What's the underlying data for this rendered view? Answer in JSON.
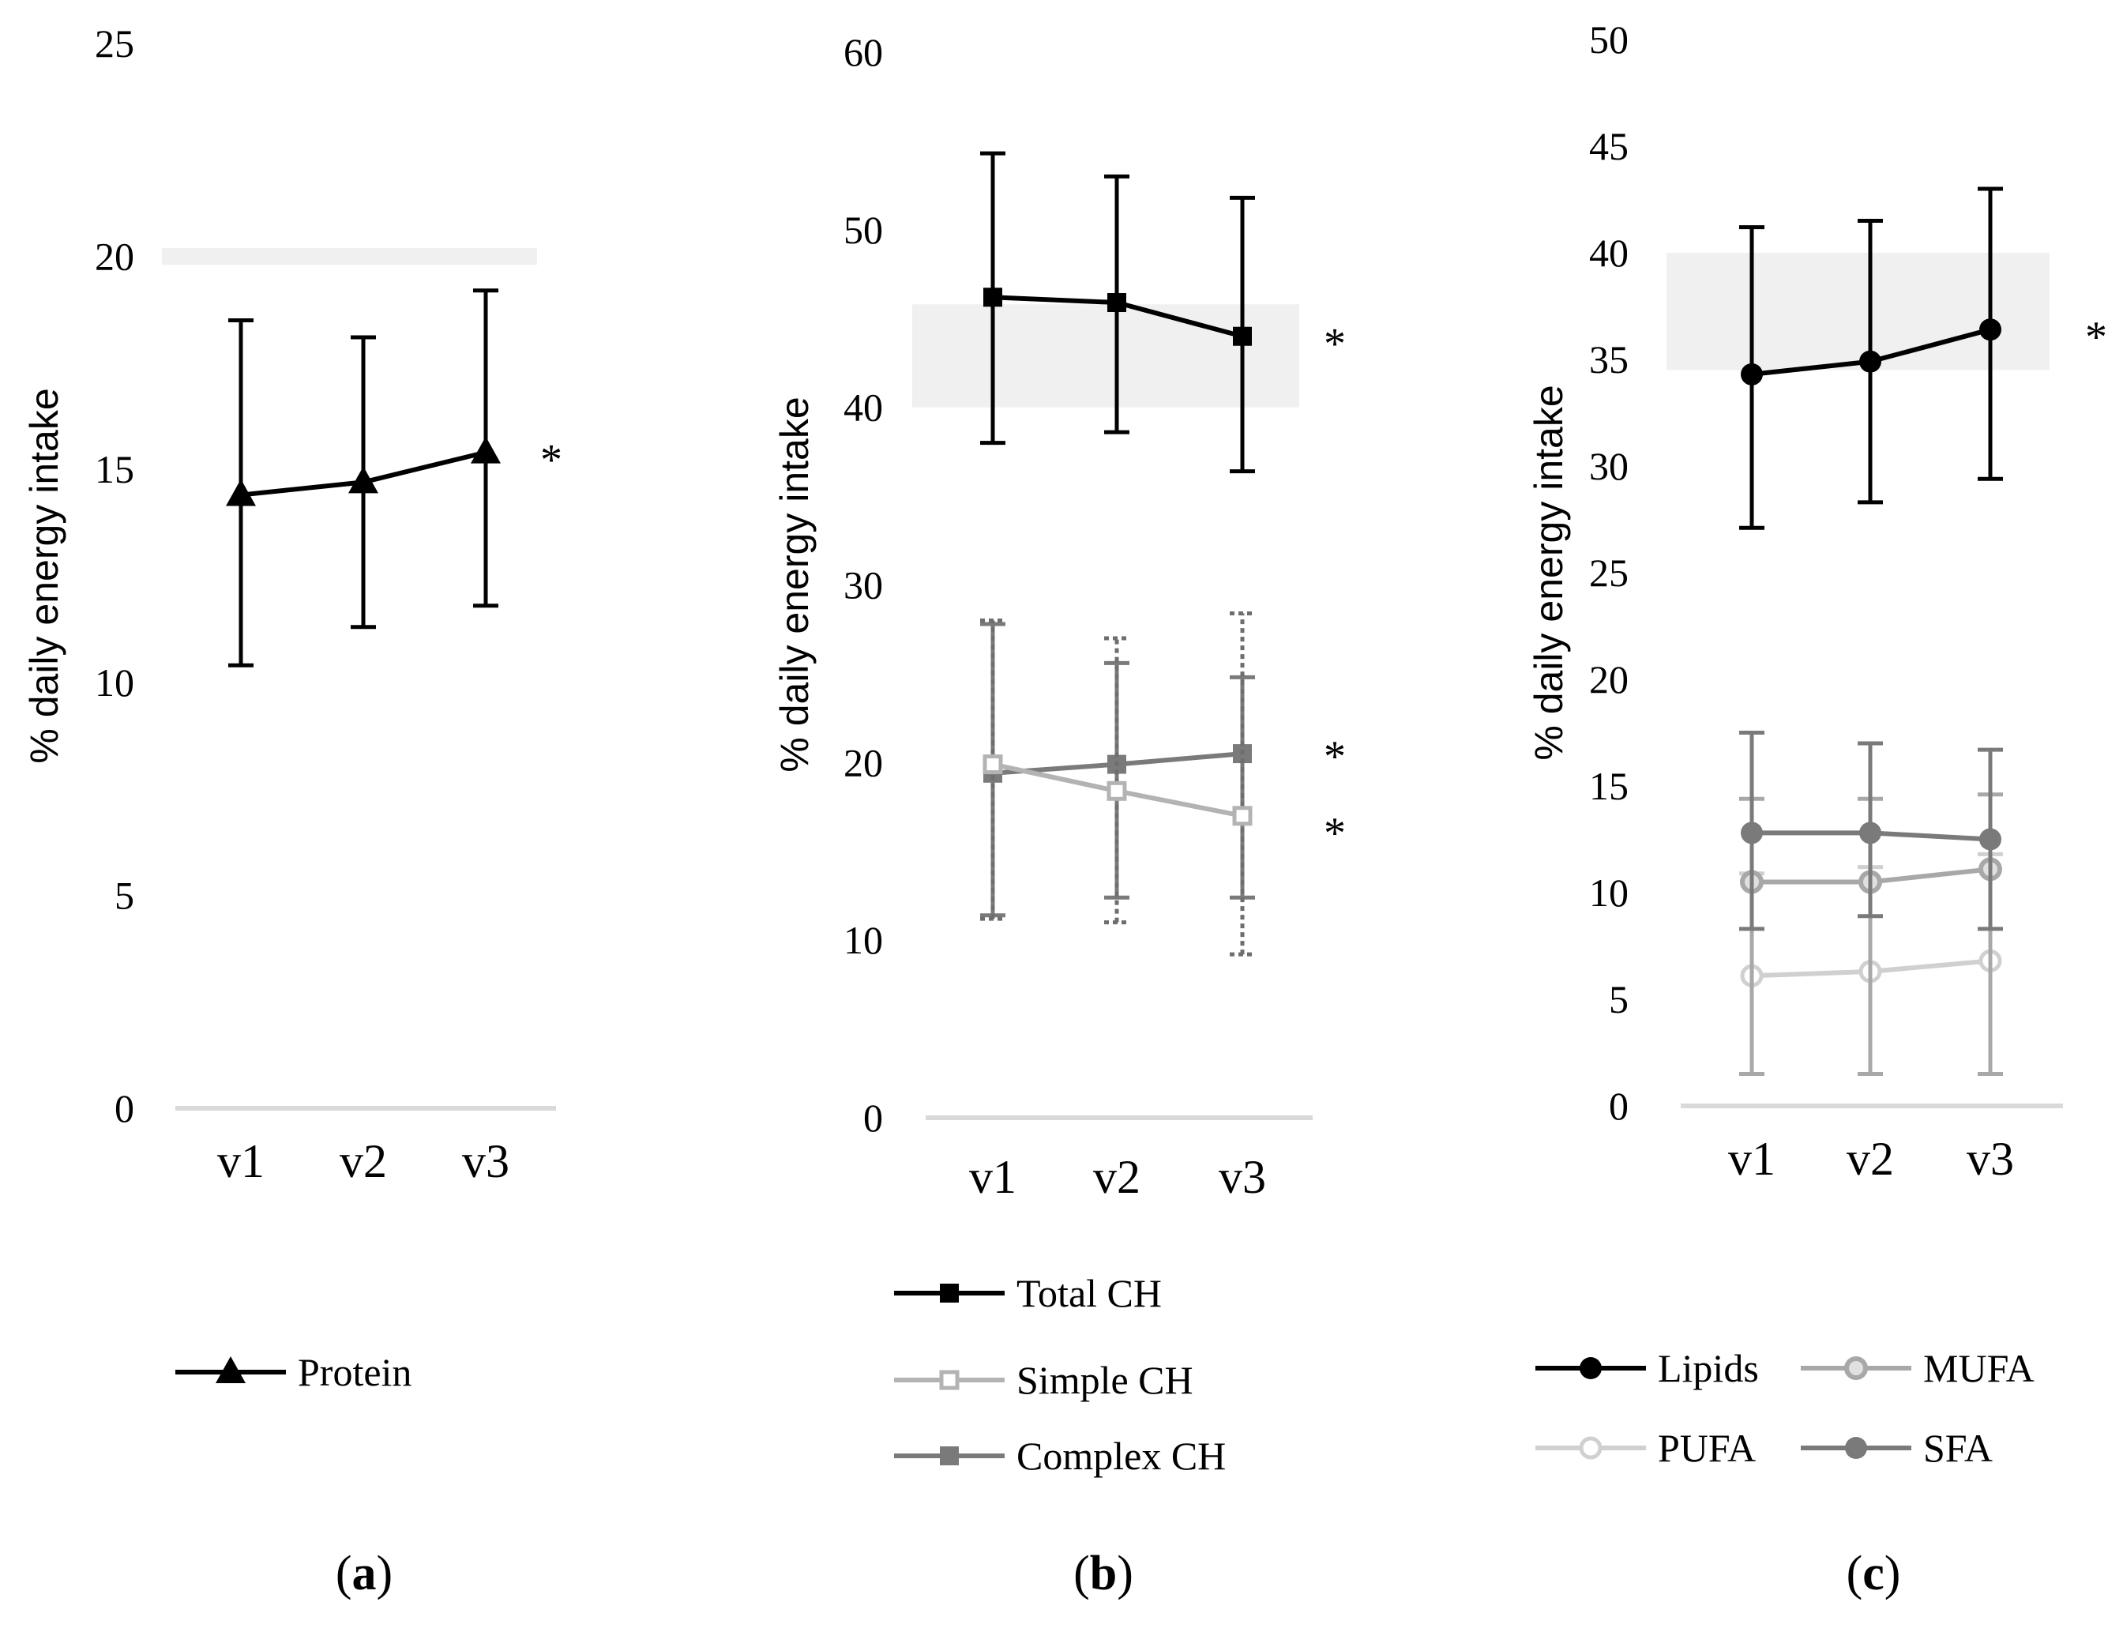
{
  "chart_data": [
    {
      "panel": "(a)",
      "panel_letter": "a",
      "type": "line",
      "ylabel": "% daily energy intake",
      "ylim": [
        0,
        25
      ],
      "yticks": [
        "0",
        "5",
        "10",
        "15",
        "20",
        "25"
      ],
      "categories": [
        "v1",
        "v2",
        "v3"
      ],
      "reference_band": [
        19.8,
        20.2
      ],
      "series": [
        {
          "name": "Protein",
          "key": "protein",
          "values": [
            14.4,
            14.7,
            15.4
          ],
          "err_low": [
            10.4,
            11.3,
            11.8
          ],
          "err_high": [
            18.5,
            18.1,
            19.2
          ],
          "color": "#000000",
          "marker": "triangle",
          "significant": true,
          "star": "*"
        }
      ],
      "legend": [
        {
          "label": "Protein",
          "key": "protein"
        }
      ]
    },
    {
      "panel": "(b)",
      "panel_letter": "b",
      "type": "line",
      "ylabel": "% daily energy intake",
      "ylim": [
        0,
        60
      ],
      "yticks": [
        "0",
        "10",
        "20",
        "30",
        "40",
        "50",
        "60"
      ],
      "categories": [
        "v1",
        "v2",
        "v3"
      ],
      "reference_band": [
        40,
        45.8
      ],
      "series": [
        {
          "name": "Total CH",
          "key": "total",
          "values": [
            46.2,
            45.9,
            44.0
          ],
          "err_low": [
            38.0,
            38.6,
            36.4
          ],
          "err_high": [
            54.3,
            53.0,
            51.8
          ],
          "color": "#000000",
          "marker": "square",
          "significant": true,
          "star": "*"
        },
        {
          "name": "Simple CH",
          "key": "simple",
          "values": [
            19.9,
            18.4,
            17.0
          ],
          "err_low": [
            11.2,
            11.0,
            9.2
          ],
          "err_high": [
            28.0,
            27.0,
            28.4
          ],
          "color": "#b3b3b3",
          "marker": "square-open",
          "significant": true,
          "star": "*"
        },
        {
          "name": "Complex CH",
          "key": "complex",
          "values": [
            19.4,
            19.9,
            20.5
          ],
          "err_low": [
            11.4,
            12.4,
            12.4
          ],
          "err_high": [
            27.8,
            25.6,
            24.8
          ],
          "color": "#7a7a7a",
          "marker": "square",
          "significant": true,
          "star": "*"
        }
      ],
      "legend": [
        {
          "label": "Total CH",
          "key": "total"
        },
        {
          "label": "Simple CH",
          "key": "simple"
        },
        {
          "label": "Complex CH",
          "key": "complex"
        }
      ]
    },
    {
      "panel": "(c)",
      "panel_letter": "c",
      "type": "line",
      "ylabel": "% daily energy intake",
      "ylim": [
        0,
        50
      ],
      "yticks": [
        "0",
        "5",
        "10",
        "15",
        "20",
        "25",
        "30",
        "35",
        "40",
        "45",
        "50"
      ],
      "categories": [
        "v1",
        "v2",
        "v3"
      ],
      "reference_band": [
        34.5,
        40
      ],
      "series": [
        {
          "name": "Lipids",
          "key": "lipids",
          "values": [
            34.3,
            34.9,
            36.4
          ],
          "err_low": [
            27.1,
            28.3,
            29.4
          ],
          "err_high": [
            41.2,
            41.5,
            43.0
          ],
          "color": "#000000",
          "marker": "circle",
          "significant": true,
          "star": "*"
        },
        {
          "name": "SFA",
          "key": "sfa",
          "values": [
            12.8,
            12.8,
            12.5
          ],
          "err_low": [
            8.3,
            8.9,
            8.3
          ],
          "err_high": [
            17.5,
            17.0,
            16.7
          ],
          "color": "#7a7a7a",
          "marker": "circle",
          "significant": false
        },
        {
          "name": "MUFA",
          "key": "mufa",
          "values": [
            10.5,
            10.5,
            11.1
          ],
          "err_low": [
            1.5,
            1.5,
            1.5
          ],
          "err_high": [
            14.4,
            14.4,
            14.6
          ],
          "color": "#a8a8a8",
          "marker": "circle-ring",
          "significant": false
        },
        {
          "name": "PUFA",
          "key": "pufa",
          "values": [
            6.1,
            6.3,
            6.8
          ],
          "err_low": [
            1.5,
            1.5,
            1.5
          ],
          "err_high": [
            10.9,
            11.2,
            11.8
          ],
          "color": "#d0d0d0",
          "marker": "circle-open",
          "significant": false
        }
      ],
      "legend": [
        {
          "label": "Lipids",
          "key": "lipids"
        },
        {
          "label": "MUFA",
          "key": "mufa"
        },
        {
          "label": "PUFA",
          "key": "pufa"
        },
        {
          "label": "SFA",
          "key": "sfa"
        }
      ]
    }
  ]
}
